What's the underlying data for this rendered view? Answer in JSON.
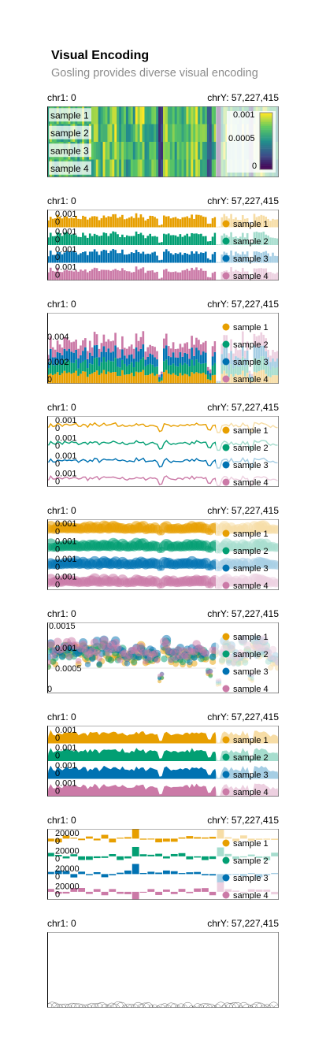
{
  "header": {
    "title": "Visual Encoding",
    "subtitle": "Gosling provides diverse visual encoding"
  },
  "axis": {
    "start_label": "chr1: 0",
    "end_label": "chrY: 57,227,415"
  },
  "colors": {
    "sample 1": "#E79F00",
    "sample 2": "#029F73",
    "sample 3": "#0072B2",
    "sample 4": "#CB7AA7",
    "highlight": "#ffffff",
    "axis": "#000000",
    "grid": "#cccccc"
  },
  "chart_data": [
    {
      "type": "heatmap",
      "rows": [
        "sample 1",
        "sample 2",
        "sample 3",
        "sample 4"
      ],
      "colorscale": "viridis",
      "colorbar_ticks": [
        "0.001",
        "0.0005",
        "0"
      ],
      "value_range": [
        0,
        0.0012
      ]
    },
    {
      "type": "bar",
      "layout": "rows",
      "series": [
        "sample 1",
        "sample 2",
        "sample 3",
        "sample 4"
      ],
      "y_tick_labels": [
        "0.001",
        "0"
      ],
      "legend": "right"
    },
    {
      "type": "bar",
      "layout": "stacked",
      "series": [
        "sample 1",
        "sample 2",
        "sample 3",
        "sample 4"
      ],
      "y_tick_labels": [
        "0.004",
        "0.002",
        "0"
      ],
      "legend": "right"
    },
    {
      "type": "line",
      "layout": "rows",
      "series": [
        "sample 1",
        "sample 2",
        "sample 3",
        "sample 4"
      ],
      "y_tick_labels": [
        "0.001",
        "0"
      ],
      "legend": "right"
    },
    {
      "type": "scatter",
      "layout": "rows",
      "series": [
        "sample 1",
        "sample 2",
        "sample 3",
        "sample 4"
      ],
      "y_tick_labels": [
        "0.001",
        "0"
      ],
      "legend": "right"
    },
    {
      "type": "scatter",
      "layout": "overlay",
      "series": [
        "sample 1",
        "sample 2",
        "sample 3",
        "sample 4"
      ],
      "y_tick_labels": [
        "0.0015",
        "0.001",
        "0.0005",
        "0"
      ],
      "legend": "right"
    },
    {
      "type": "area",
      "layout": "rows",
      "series": [
        "sample 1",
        "sample 2",
        "sample 3",
        "sample 4"
      ],
      "y_tick_labels": [
        "0.001",
        "0"
      ],
      "legend": "right"
    },
    {
      "type": "bar",
      "layout": "rows-diverging",
      "series": [
        "sample 1",
        "sample 2",
        "sample 3",
        "sample 4"
      ],
      "y_tick_labels": [
        "20000",
        "0"
      ],
      "legend": "right"
    },
    {
      "type": "scatter",
      "layout": "outline-circles",
      "series": [],
      "y_tick_labels": [],
      "legend": "none"
    }
  ]
}
